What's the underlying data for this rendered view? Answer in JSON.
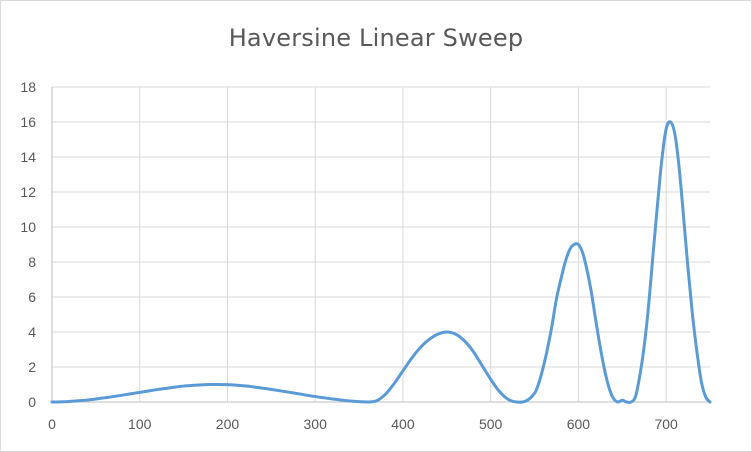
{
  "chart_data": {
    "type": "line",
    "title": "Haversine Linear Sweep",
    "xlabel": "",
    "ylabel": "",
    "xlim": [
      0,
      750
    ],
    "ylim": [
      0,
      18
    ],
    "x_ticks": [
      0,
      100,
      200,
      300,
      400,
      500,
      600,
      700
    ],
    "x_tick_labels": [
      "0",
      "100",
      "200",
      "300",
      "400",
      "500",
      "600",
      "700"
    ],
    "y_ticks": [
      0,
      2,
      4,
      6,
      8,
      10,
      12,
      14,
      16,
      18
    ],
    "y_tick_labels": [
      "0",
      "2",
      "4",
      "6",
      "8",
      "10",
      "12",
      "14",
      "16",
      "18"
    ],
    "grid": true,
    "legend": "none",
    "series_color": "#5b9bd5",
    "series": [
      {
        "x": [
          0,
          10,
          20,
          30,
          40,
          50,
          60,
          70,
          80,
          90,
          100,
          110,
          120,
          130,
          140,
          150,
          160,
          170,
          180,
          190,
          200,
          210,
          220,
          230,
          240,
          250,
          260,
          270,
          280,
          290,
          300,
          310,
          320,
          330,
          340,
          350,
          360,
          370,
          380,
          390,
          400,
          410,
          420,
          430,
          440,
          450,
          460,
          470,
          480,
          490,
          500,
          510,
          520,
          530,
          540,
          550,
          555,
          560,
          565,
          570,
          575,
          580,
          585,
          590,
          595,
          600,
          605,
          610,
          615,
          620,
          625,
          630,
          635,
          640,
          645,
          650,
          655,
          660,
          665,
          670,
          675,
          680,
          685,
          690,
          695,
          700,
          705,
          710,
          715,
          720,
          725,
          730,
          735,
          740,
          745,
          750
        ],
        "y": [
          0.0,
          0.007,
          0.03,
          0.07,
          0.11,
          0.17,
          0.24,
          0.31,
          0.39,
          0.47,
          0.55,
          0.63,
          0.71,
          0.78,
          0.85,
          0.91,
          0.95,
          0.98,
          1.0,
          1.0,
          0.99,
          0.96,
          0.92,
          0.86,
          0.79,
          0.72,
          0.64,
          0.56,
          0.48,
          0.39,
          0.31,
          0.24,
          0.17,
          0.11,
          0.06,
          0.02,
          0.0,
          0.07,
          0.44,
          1.05,
          1.78,
          2.5,
          3.12,
          3.58,
          3.88,
          4.0,
          3.88,
          3.5,
          2.9,
          2.1,
          1.3,
          0.6,
          0.15,
          0.0,
          0.05,
          0.5,
          1.1,
          2.0,
          3.1,
          4.4,
          5.9,
          7.0,
          8.0,
          8.7,
          9.0,
          9.0,
          8.5,
          7.5,
          6.2,
          4.6,
          3.1,
          1.8,
          0.8,
          0.2,
          0.0,
          0.1,
          0.0,
          0.0,
          0.3,
          1.5,
          3.2,
          5.5,
          8.4,
          11.2,
          13.8,
          15.6,
          16.0,
          15.3,
          13.3,
          10.5,
          7.6,
          5.0,
          2.9,
          1.2,
          0.3,
          0.0
        ]
      }
    ]
  }
}
